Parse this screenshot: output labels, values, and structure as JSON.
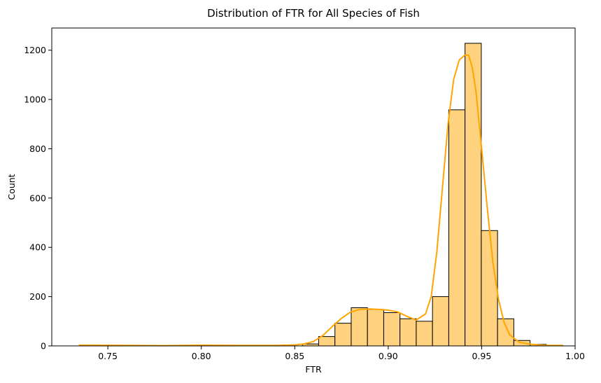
{
  "chart_data": {
    "type": "histogram",
    "title": "Distribution of FTR for All Species of Fish",
    "xlabel": "FTR",
    "ylabel": "Count",
    "xlim": [
      0.72,
      1.0
    ],
    "ylim": [
      0,
      1290
    ],
    "xticks": [
      0.75,
      0.8,
      0.85,
      0.9,
      0.95,
      1.0
    ],
    "xtick_labels": [
      "0.75",
      "0.80",
      "0.85",
      "0.90",
      "0.95",
      "1.00"
    ],
    "yticks": [
      0,
      200,
      400,
      600,
      800,
      1000,
      1200
    ],
    "ytick_labels": [
      "0",
      "200",
      "400",
      "600",
      "800",
      "1000",
      "1200"
    ],
    "grid": false,
    "bar_fill": "#ffd27f",
    "bar_edge": "#000000",
    "kde_color": "#ffa500",
    "bins": [
      {
        "x0": 0.8541,
        "x1": 0.8628,
        "count": 8
      },
      {
        "x0": 0.8628,
        "x1": 0.8715,
        "count": 38
      },
      {
        "x0": 0.8715,
        "x1": 0.8802,
        "count": 92
      },
      {
        "x0": 0.8802,
        "x1": 0.8889,
        "count": 155
      },
      {
        "x0": 0.8889,
        "x1": 0.8976,
        "count": 148
      },
      {
        "x0": 0.8976,
        "x1": 0.9063,
        "count": 135
      },
      {
        "x0": 0.9063,
        "x1": 0.915,
        "count": 110
      },
      {
        "x0": 0.915,
        "x1": 0.9237,
        "count": 100
      },
      {
        "x0": 0.9237,
        "x1": 0.9324,
        "count": 200
      },
      {
        "x0": 0.9324,
        "x1": 0.9411,
        "count": 958
      },
      {
        "x0": 0.9411,
        "x1": 0.9498,
        "count": 1228
      },
      {
        "x0": 0.9498,
        "x1": 0.9585,
        "count": 468
      },
      {
        "x0": 0.9585,
        "x1": 0.9672,
        "count": 110
      },
      {
        "x0": 0.9672,
        "x1": 0.9759,
        "count": 22
      },
      {
        "x0": 0.9759,
        "x1": 0.9846,
        "count": 6
      },
      {
        "x0": 0.9846,
        "x1": 0.9933,
        "count": 2
      }
    ],
    "kde": {
      "x": [
        0.7345,
        0.76,
        0.78,
        0.8,
        0.82,
        0.84,
        0.85,
        0.855,
        0.86,
        0.865,
        0.87,
        0.875,
        0.88,
        0.885,
        0.89,
        0.895,
        0.9,
        0.905,
        0.91,
        0.915,
        0.92,
        0.923,
        0.926,
        0.929,
        0.932,
        0.935,
        0.938,
        0.941,
        0.943,
        0.945,
        0.947,
        0.95,
        0.953,
        0.956,
        0.959,
        0.962,
        0.965,
        0.97,
        0.975,
        0.98,
        0.985,
        0.9933
      ],
      "y": [
        3,
        2,
        1,
        3,
        2,
        2,
        4,
        8,
        18,
        42,
        78,
        112,
        138,
        148,
        150,
        148,
        145,
        138,
        120,
        105,
        130,
        200,
        380,
        640,
        900,
        1080,
        1160,
        1180,
        1180,
        1130,
        1030,
        800,
        560,
        340,
        190,
        95,
        45,
        15,
        8,
        4,
        2,
        2
      ]
    }
  }
}
